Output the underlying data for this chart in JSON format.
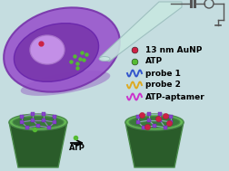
{
  "bg_color": "#c5dde0",
  "legend_items": [
    {
      "label": "13 nm AuNP",
      "color": "#cc2244",
      "type": "circle"
    },
    {
      "label": "ATP",
      "color": "#55bb33",
      "type": "circle"
    },
    {
      "label": "probe 1",
      "color": "#3355cc",
      "type": "wave"
    },
    {
      "label": "probe 2",
      "color": "#ddaa22",
      "type": "wave"
    },
    {
      "label": "ATP-aptamer",
      "color": "#cc33cc",
      "type": "wave"
    }
  ],
  "font_size_legend": 6.5,
  "font_size_atp": 6.0,
  "circuit_color": "#555555",
  "pipette_color": "#c8e8e0",
  "cell_outer_color": "#9955cc",
  "cell_outer_edge": "#7733aa",
  "cell_inner_color": "#7733aa",
  "cell_inner_edge": "#6622aa",
  "nucleus_color": "#cc99ee",
  "nucleus_edge": "#aa77cc",
  "tip_dark": "#2a5c2a",
  "tip_medium": "#3a7a3a",
  "tip_light": "#66bb55",
  "tip_edge": "#4a8a4a",
  "atp_green": "#55bb33",
  "aunp_red": "#cc2244",
  "mesh_purple": "#8844cc",
  "mesh_line_before": "#9988cc",
  "mesh_line_after": "#99bbcc"
}
